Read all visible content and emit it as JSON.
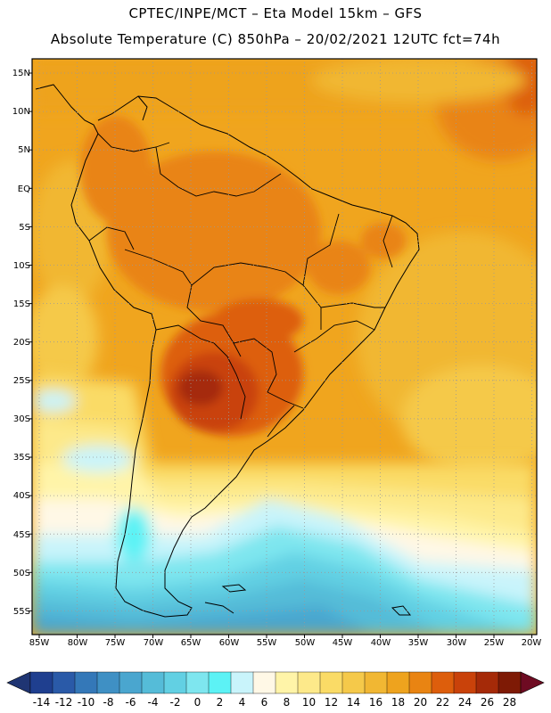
{
  "title_line1": "CPTEC/INPE/MCT –  Eta Model 15km – GFS",
  "title_line2": "Absolute Temperature (C) 850hPa – 20/02/2021 12UTC fct=74h",
  "lat_labels": [
    "15N",
    "10N",
    "5N",
    "EQ",
    "5S",
    "10S",
    "15S",
    "20S",
    "25S",
    "30S",
    "35S",
    "40S",
    "45S",
    "50S",
    "55S"
  ],
  "lon_labels": [
    "85W",
    "80W",
    "75W",
    "70W",
    "65W",
    "60W",
    "55W",
    "50W",
    "45W",
    "40W",
    "35W",
    "30W",
    "25W",
    "20W"
  ],
  "colorbar": {
    "labels": [
      "-14",
      "-12",
      "-10",
      "-8",
      "-6",
      "-4",
      "-2",
      "0",
      "2",
      "4",
      "6",
      "8",
      "10",
      "12",
      "14",
      "16",
      "18",
      "20",
      "22",
      "24",
      "26",
      "28"
    ],
    "colors": [
      "#1f3f8f",
      "#2a5aa8",
      "#3478b8",
      "#3f90c4",
      "#4aa6cf",
      "#55bcd8",
      "#62d0e3",
      "#7ee6ef",
      "#5cf2f5",
      "#c9f4fb",
      "#fff8e6",
      "#fff4a8",
      "#fde98a",
      "#fadb66",
      "#f5c94a",
      "#f1b733",
      "#eea31e",
      "#e98412",
      "#dd5e0c",
      "#c9420a",
      "#a52a08",
      "#7e1a05"
    ],
    "low_color": "#1f3573",
    "high_color": "#6e0b22"
  }
}
